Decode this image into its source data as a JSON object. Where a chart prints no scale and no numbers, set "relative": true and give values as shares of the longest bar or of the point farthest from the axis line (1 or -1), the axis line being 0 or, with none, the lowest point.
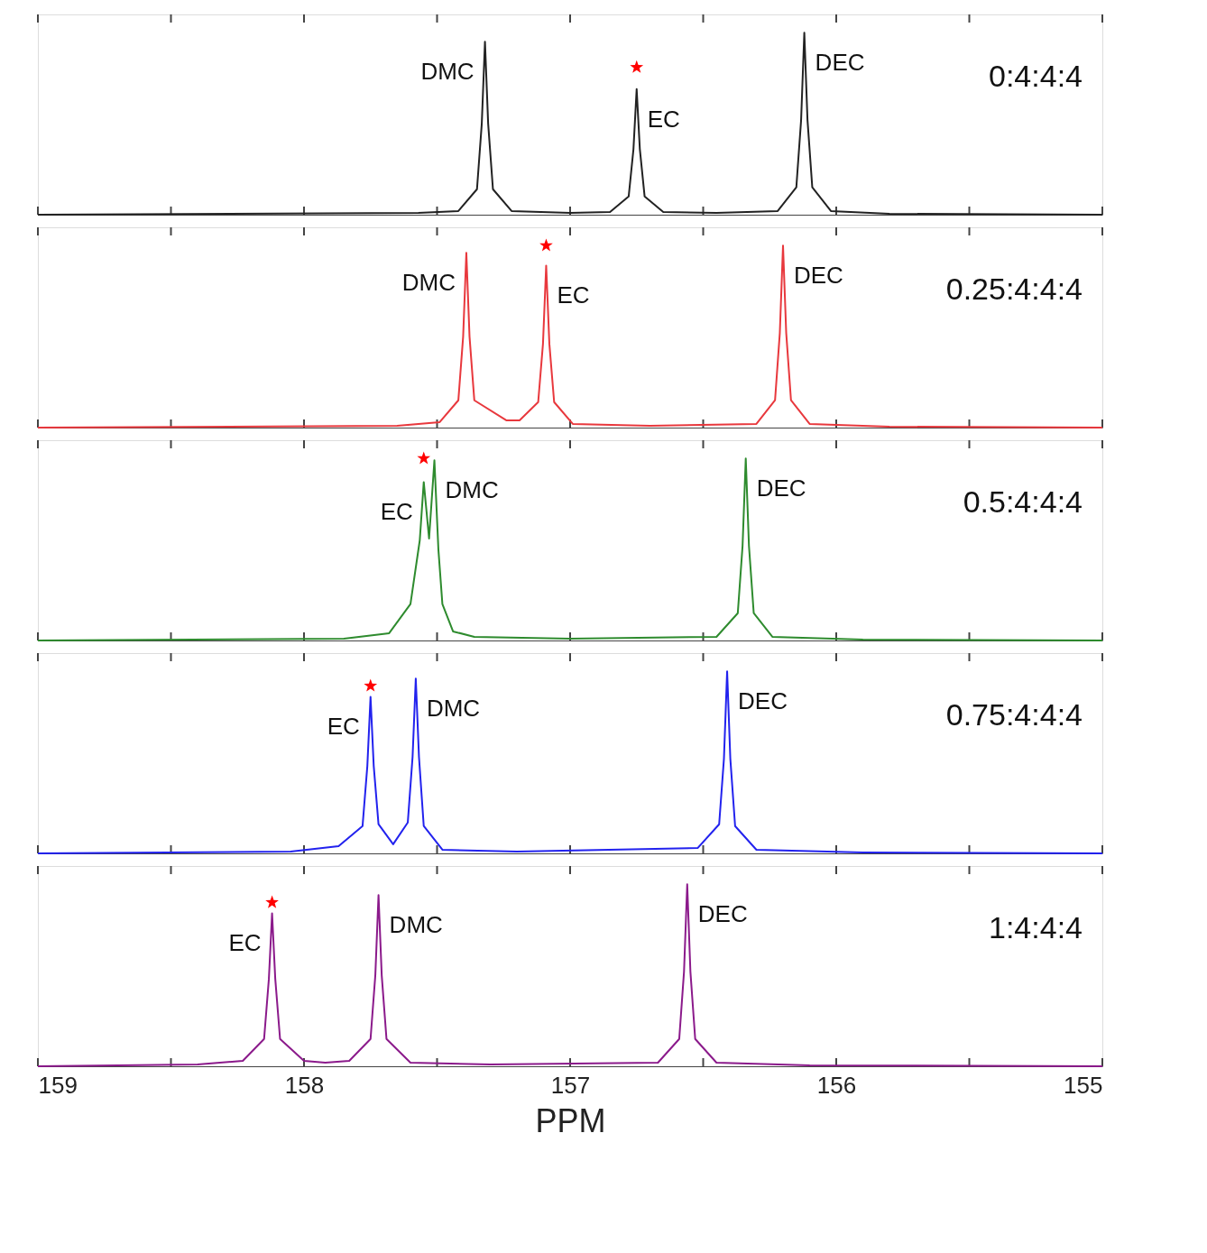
{
  "chart_data": [
    {
      "type": "line",
      "relative": true,
      "xlim": [
        159,
        155
      ],
      "xticks": [
        159,
        {
          "value": 158.5,
          "label": null
        },
        158,
        {
          "value": 157.5,
          "label": null
        },
        157,
        {
          "value": 156.5,
          "label": null
        },
        156,
        {
          "value": 155.5,
          "label": null
        },
        155
      ],
      "tick_labels": false,
      "series": [
        {
          "type": "line",
          "color": "#222222",
          "x": [
            159,
            157.57,
            157.42,
            157.35,
            157.332,
            157.32,
            157.308,
            157.29,
            157.22,
            157.0,
            156.85,
            156.78,
            156.762,
            156.75,
            156.738,
            156.72,
            156.65,
            156.45,
            156.22,
            156.15,
            156.132,
            156.12,
            156.108,
            156.09,
            156.02,
            155.8,
            155
          ],
          "values": [
            0,
            0.01,
            0.02,
            0.14,
            0.5,
            0.95,
            0.5,
            0.14,
            0.02,
            0.01,
            0.015,
            0.1,
            0.36,
            0.69,
            0.36,
            0.1,
            0.015,
            0.01,
            0.02,
            0.15,
            0.52,
            1.0,
            0.52,
            0.15,
            0.02,
            0.005,
            0
          ]
        },
        {
          "type": "scatter",
          "marker": "star",
          "color": "#ff0000",
          "x": [
            156.75
          ],
          "values": [
            0.81
          ]
        }
      ],
      "annotations": [
        {
          "text": "DMC",
          "x": 157.32,
          "y": 0.95
        },
        {
          "text": "EC",
          "x": 156.75,
          "y": 0.69
        },
        {
          "text": "DEC",
          "x": 156.12,
          "y": 1.0
        },
        "0:4:4:4"
      ]
    },
    {
      "type": "line",
      "relative": true,
      "xlim": [
        159,
        155
      ],
      "xticks": [
        159,
        {
          "value": 158.5,
          "label": null
        },
        158,
        {
          "value": 157.5,
          "label": null
        },
        157,
        {
          "value": 156.5,
          "label": null
        },
        156,
        {
          "value": 155.5,
          "label": null
        },
        155
      ],
      "tick_labels": false,
      "series": [
        {
          "type": "line",
          "color": "#e8383d",
          "x": [
            159,
            157.65,
            157.49,
            157.42,
            157.402,
            157.39,
            157.378,
            157.36,
            157.24,
            157.19,
            157.12,
            157.102,
            157.09,
            157.078,
            157.06,
            156.99,
            156.7,
            156.3,
            156.23,
            156.212,
            156.2,
            156.188,
            156.17,
            156.1,
            155.8,
            155
          ],
          "values": [
            0,
            0.01,
            0.03,
            0.15,
            0.5,
            0.96,
            0.5,
            0.15,
            0.04,
            0.04,
            0.14,
            0.46,
            0.89,
            0.46,
            0.14,
            0.02,
            0.01,
            0.02,
            0.15,
            0.52,
            1.0,
            0.52,
            0.15,
            0.02,
            0.005,
            0
          ]
        },
        {
          "type": "scatter",
          "marker": "star",
          "color": "#ff0000",
          "x": [
            157.09
          ],
          "values": [
            1.0
          ]
        }
      ],
      "annotations": [
        {
          "text": "DMC",
          "x": 157.39,
          "y": 0.96
        },
        {
          "text": "EC",
          "x": 157.09,
          "y": 0.89
        },
        {
          "text": "DEC",
          "x": 156.2,
          "y": 1.0
        },
        "0.25:4:4:4"
      ]
    },
    {
      "type": "line",
      "relative": true,
      "xlim": [
        159,
        155
      ],
      "xticks": [
        159,
        {
          "value": 158.5,
          "label": null
        },
        158,
        {
          "value": 157.5,
          "label": null
        },
        157,
        {
          "value": 156.5,
          "label": null
        },
        156,
        {
          "value": 155.5,
          "label": null
        },
        155
      ],
      "tick_labels": false,
      "series": [
        {
          "type": "line",
          "color": "#2e8b2e",
          "x": [
            159,
            157.85,
            157.68,
            157.6,
            157.565,
            157.55,
            157.53,
            157.51,
            157.495,
            157.48,
            157.44,
            157.36,
            157.0,
            156.45,
            156.37,
            156.352,
            156.34,
            156.328,
            156.31,
            156.24,
            155.9,
            155
          ],
          "values": [
            0,
            0.01,
            0.04,
            0.2,
            0.55,
            0.87,
            0.56,
            0.99,
            0.5,
            0.2,
            0.05,
            0.02,
            0.01,
            0.02,
            0.15,
            0.52,
            1.0,
            0.52,
            0.15,
            0.02,
            0.005,
            0
          ]
        },
        {
          "type": "scatter",
          "marker": "star",
          "color": "#ff0000",
          "x": [
            157.55
          ],
          "values": [
            1.0
          ]
        }
      ],
      "annotations": [
        {
          "text": "EC",
          "x": 157.55,
          "y": 0.87
        },
        {
          "text": "DMC",
          "x": 157.51,
          "y": 0.99
        },
        {
          "text": "DEC",
          "x": 156.34,
          "y": 1.0
        },
        "0.5:4:4:4"
      ]
    },
    {
      "type": "line",
      "relative": true,
      "xlim": [
        159,
        155
      ],
      "xticks": [
        159,
        {
          "value": 158.5,
          "label": null
        },
        158,
        {
          "value": 157.5,
          "label": null
        },
        157,
        {
          "value": 156.5,
          "label": null
        },
        156,
        {
          "value": 155.5,
          "label": null
        },
        155
      ],
      "tick_labels": false,
      "series": [
        {
          "type": "line",
          "color": "#2222ee",
          "x": [
            159,
            158.05,
            157.87,
            157.78,
            157.762,
            157.75,
            157.738,
            157.72,
            157.665,
            157.61,
            157.592,
            157.58,
            157.568,
            157.55,
            157.48,
            157.2,
            156.52,
            156.44,
            156.422,
            156.41,
            156.398,
            156.38,
            156.3,
            155.9,
            155
          ],
          "values": [
            0,
            0.01,
            0.04,
            0.15,
            0.48,
            0.86,
            0.48,
            0.16,
            0.05,
            0.17,
            0.53,
            0.96,
            0.53,
            0.15,
            0.02,
            0.01,
            0.03,
            0.16,
            0.52,
            1.0,
            0.52,
            0.15,
            0.02,
            0.005,
            0
          ]
        },
        {
          "type": "scatter",
          "marker": "star",
          "color": "#ff0000",
          "x": [
            157.75
          ],
          "values": [
            0.92
          ]
        }
      ],
      "annotations": [
        {
          "text": "EC",
          "x": 157.75,
          "y": 0.86
        },
        {
          "text": "DMC",
          "x": 157.58,
          "y": 0.96
        },
        {
          "text": "DEC",
          "x": 156.41,
          "y": 1.0
        },
        "0.75:4:4:4"
      ]
    },
    {
      "type": "line",
      "relative": true,
      "xlim": [
        159,
        155
      ],
      "xticks": [
        159,
        {
          "value": 158.5,
          "label": null
        },
        158,
        {
          "value": 157.5,
          "label": null
        },
        157,
        {
          "value": 156.5,
          "label": null
        },
        156,
        {
          "value": 155.5,
          "label": null
        },
        155
      ],
      "tick_labels": "x",
      "xlabel": "PPM",
      "series": [
        {
          "type": "line",
          "color": "#8b1a8b",
          "x": [
            159,
            158.4,
            158.23,
            158.15,
            158.132,
            158.12,
            158.108,
            158.09,
            158.0,
            157.92,
            157.83,
            157.75,
            157.732,
            157.72,
            157.708,
            157.69,
            157.6,
            157.3,
            156.67,
            156.59,
            156.572,
            156.56,
            156.548,
            156.53,
            156.45,
            156.1,
            155
          ],
          "values": [
            0,
            0.01,
            0.03,
            0.15,
            0.48,
            0.84,
            0.48,
            0.15,
            0.03,
            0.02,
            0.03,
            0.15,
            0.5,
            0.94,
            0.5,
            0.15,
            0.02,
            0.01,
            0.02,
            0.15,
            0.52,
            1.0,
            0.52,
            0.15,
            0.02,
            0.005,
            0
          ]
        },
        {
          "type": "scatter",
          "marker": "star",
          "color": "#ff0000",
          "x": [
            158.12
          ],
          "values": [
            0.9
          ]
        }
      ],
      "annotations": [
        {
          "text": "EC",
          "x": 158.12,
          "y": 0.84
        },
        {
          "text": "DMC",
          "x": 157.72,
          "y": 0.94
        },
        {
          "text": "DEC",
          "x": 156.56,
          "y": 1.0
        },
        "1:4:4:4"
      ]
    }
  ]
}
